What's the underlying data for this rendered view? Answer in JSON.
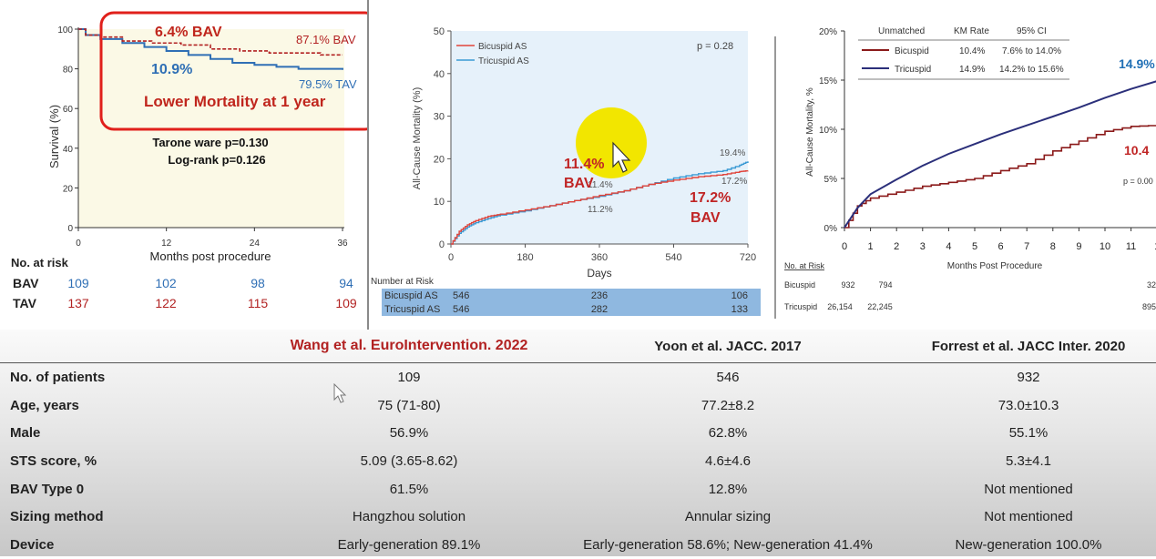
{
  "colors": {
    "bav_red": "#b22222",
    "tav_blue": "#2f6fb5",
    "highlight_box": "#e0201b",
    "panel_bg": "#fbf9e6",
    "yoon_bg": "#e6f1fa",
    "bicuspid_red": "#8b1a1a",
    "tricuspid_navy": "#2b2f7a",
    "risk_band": "#8fb8e0"
  },
  "icons": [
    "mouse-pointer-icon",
    "mouse-pointer-icon"
  ],
  "chart_data": [
    {
      "type": "line",
      "ylabel": "Survival (%)",
      "xlabel": "Months post procedure",
      "xticks": [
        "0",
        "12",
        "24",
        "36"
      ],
      "yticks": [
        "0",
        "20",
        "40",
        "60",
        "80",
        "100"
      ],
      "xlim": [
        0,
        36
      ],
      "ylim": [
        0,
        100
      ],
      "series": [
        {
          "name": "BAV",
          "style": "dashed",
          "x": [
            0,
            1,
            3,
            6,
            10,
            14,
            18,
            22,
            26,
            30,
            33,
            36
          ],
          "y": [
            100,
            97,
            96,
            94,
            93,
            92,
            90,
            89,
            88,
            88,
            87,
            87
          ]
        },
        {
          "name": "TAV",
          "style": "solid",
          "x": [
            0,
            1,
            3,
            6,
            9,
            12,
            15,
            18,
            21,
            24,
            27,
            30,
            33,
            36
          ],
          "y": [
            100,
            97,
            95,
            93,
            91,
            89,
            87,
            85,
            83,
            82,
            81,
            80,
            80,
            79.5
          ]
        }
      ],
      "end_labels": {
        "bav": "87.1% BAV",
        "tav": "79.5% TAV"
      },
      "annotations": {
        "bav_diff": "6.4% BAV",
        "tav_diff": "10.9%",
        "headline": "Lower Mortality at 1 year"
      },
      "stats": [
        "Tarone ware p=0.130",
        "Log-rank p=0.126"
      ],
      "risk_table": {
        "title": "No. at risk",
        "rows": [
          {
            "label": "BAV",
            "values": [
              "109",
              "102",
              "98",
              "94"
            ]
          },
          {
            "label": "TAV",
            "values": [
              "137",
              "122",
              "115",
              "109"
            ]
          }
        ]
      }
    },
    {
      "type": "line",
      "ylabel": "All-Cause Mortality (%)",
      "xlabel": "Days",
      "xticks": [
        "0",
        "180",
        "360",
        "540",
        "720"
      ],
      "yticks": [
        "0",
        "10",
        "20",
        "30",
        "40",
        "50"
      ],
      "xlim": [
        0,
        720
      ],
      "ylim": [
        0,
        50
      ],
      "pvalue": "p = 0.28",
      "series": [
        {
          "name": "Bicuspid AS",
          "x": [
            0,
            20,
            40,
            60,
            90,
            120,
            180,
            240,
            300,
            360,
            420,
            480,
            540,
            600,
            660,
            700,
            720
          ],
          "y": [
            0,
            3,
            4.5,
            5.5,
            6.5,
            7,
            8,
            9,
            10.2,
            11.4,
            12.5,
            14,
            15,
            15.8,
            16.3,
            17,
            17.2
          ]
        },
        {
          "name": "Tricuspid AS",
          "x": [
            0,
            20,
            40,
            60,
            90,
            120,
            180,
            240,
            300,
            360,
            420,
            480,
            540,
            600,
            660,
            700,
            720
          ],
          "y": [
            0,
            2.5,
            4,
            5,
            6,
            6.8,
            7.8,
            9,
            10.2,
            11.2,
            12.5,
            14,
            15.5,
            16.5,
            17.2,
            18.5,
            19.4
          ]
        }
      ],
      "point_labels": [
        "11.4%",
        "11.2%",
        "19.4%",
        "17.2%"
      ],
      "annotations": {
        "year1": "11.4%",
        "year1_group": "BAV",
        "year2": "17.2%",
        "year2_group": "BAV"
      },
      "risk_table": {
        "title": "Number at Risk",
        "rows": [
          {
            "label": "Bicuspid AS",
            "values": [
              "546",
              "236",
              "106"
            ]
          },
          {
            "label": "Tricuspid AS",
            "values": [
              "546",
              "282",
              "133"
            ]
          }
        ]
      }
    },
    {
      "type": "line",
      "ylabel": "All-Cause Mortality, %",
      "xlabel": "Months Post Procedure",
      "xticks": [
        "0",
        "1",
        "2",
        "3",
        "4",
        "5",
        "6",
        "7",
        "8",
        "9",
        "10",
        "11",
        "1"
      ],
      "yticks": [
        "0%",
        "5%",
        "10%",
        "15%",
        "20%"
      ],
      "xlim": [
        0,
        12
      ],
      "ylim": [
        0,
        20
      ],
      "pvalue": "p = 0.00",
      "legend": {
        "headers": [
          "Unmatched",
          "KM Rate",
          "95% CI"
        ],
        "rows": [
          {
            "label": "Bicuspid",
            "rate": "10.4%",
            "ci": "7.6% to 14.0%"
          },
          {
            "label": "Tricuspid",
            "rate": "14.9%",
            "ci": "14.2% to 15.6%"
          }
        ]
      },
      "series": [
        {
          "name": "Bicuspid",
          "x": [
            0,
            0.5,
            1,
            2,
            3,
            4,
            5,
            6,
            7,
            8,
            9,
            10,
            11,
            12
          ],
          "y": [
            0,
            2.2,
            3,
            3.6,
            4.2,
            4.6,
            5,
            5.8,
            6.5,
            7.8,
            8.8,
            9.8,
            10.3,
            10.4
          ]
        },
        {
          "name": "Tricuspid",
          "x": [
            0,
            0.5,
            1,
            2,
            3,
            4,
            5,
            6,
            7,
            8,
            9,
            10,
            11,
            12
          ],
          "y": [
            0,
            2,
            3.4,
            4.9,
            6.3,
            7.5,
            8.5,
            9.5,
            10.4,
            11.3,
            12.2,
            13.2,
            14.1,
            14.9
          ]
        }
      ],
      "end_labels": {
        "tricuspid": "14.9%",
        "bicuspid": "10.4"
      },
      "risk_table": {
        "title": "No. at Risk",
        "rows": [
          {
            "label": "Bicuspid",
            "values": [
              "932",
              "794",
              "32"
            ]
          },
          {
            "label": "Tricuspid",
            "values": [
              "26,154",
              "22,245",
              "895"
            ]
          }
        ]
      }
    }
  ],
  "comparison_table": {
    "headers": [
      "",
      "Wang et al. EuroIntervention. 2022",
      "Yoon et al. JACC. 2017",
      "Forrest et al. JACC Inter. 2020"
    ],
    "rows": [
      {
        "label": "No. of patients",
        "values": [
          "109",
          "546",
          "932"
        ]
      },
      {
        "label": "Age, years",
        "values": [
          "75 (71-80)",
          "77.2±8.2",
          "73.0±10.3"
        ]
      },
      {
        "label": "Male",
        "values": [
          "56.9%",
          "62.8%",
          "55.1%"
        ]
      },
      {
        "label": "STS score, %",
        "values": [
          "5.09 (3.65-8.62)",
          "4.6±4.6",
          "5.3±4.1"
        ]
      },
      {
        "label": "BAV Type 0",
        "values": [
          "61.5%",
          "12.8%",
          "Not mentioned"
        ]
      },
      {
        "label": "Sizing method",
        "values": [
          "Hangzhou solution",
          "Annular sizing",
          "Not mentioned"
        ]
      },
      {
        "label": "Device",
        "values": [
          "Early-generation 89.1%",
          "Early-generation 58.6%; New-generation 41.4%",
          "New-generation 100.0%"
        ]
      }
    ]
  }
}
